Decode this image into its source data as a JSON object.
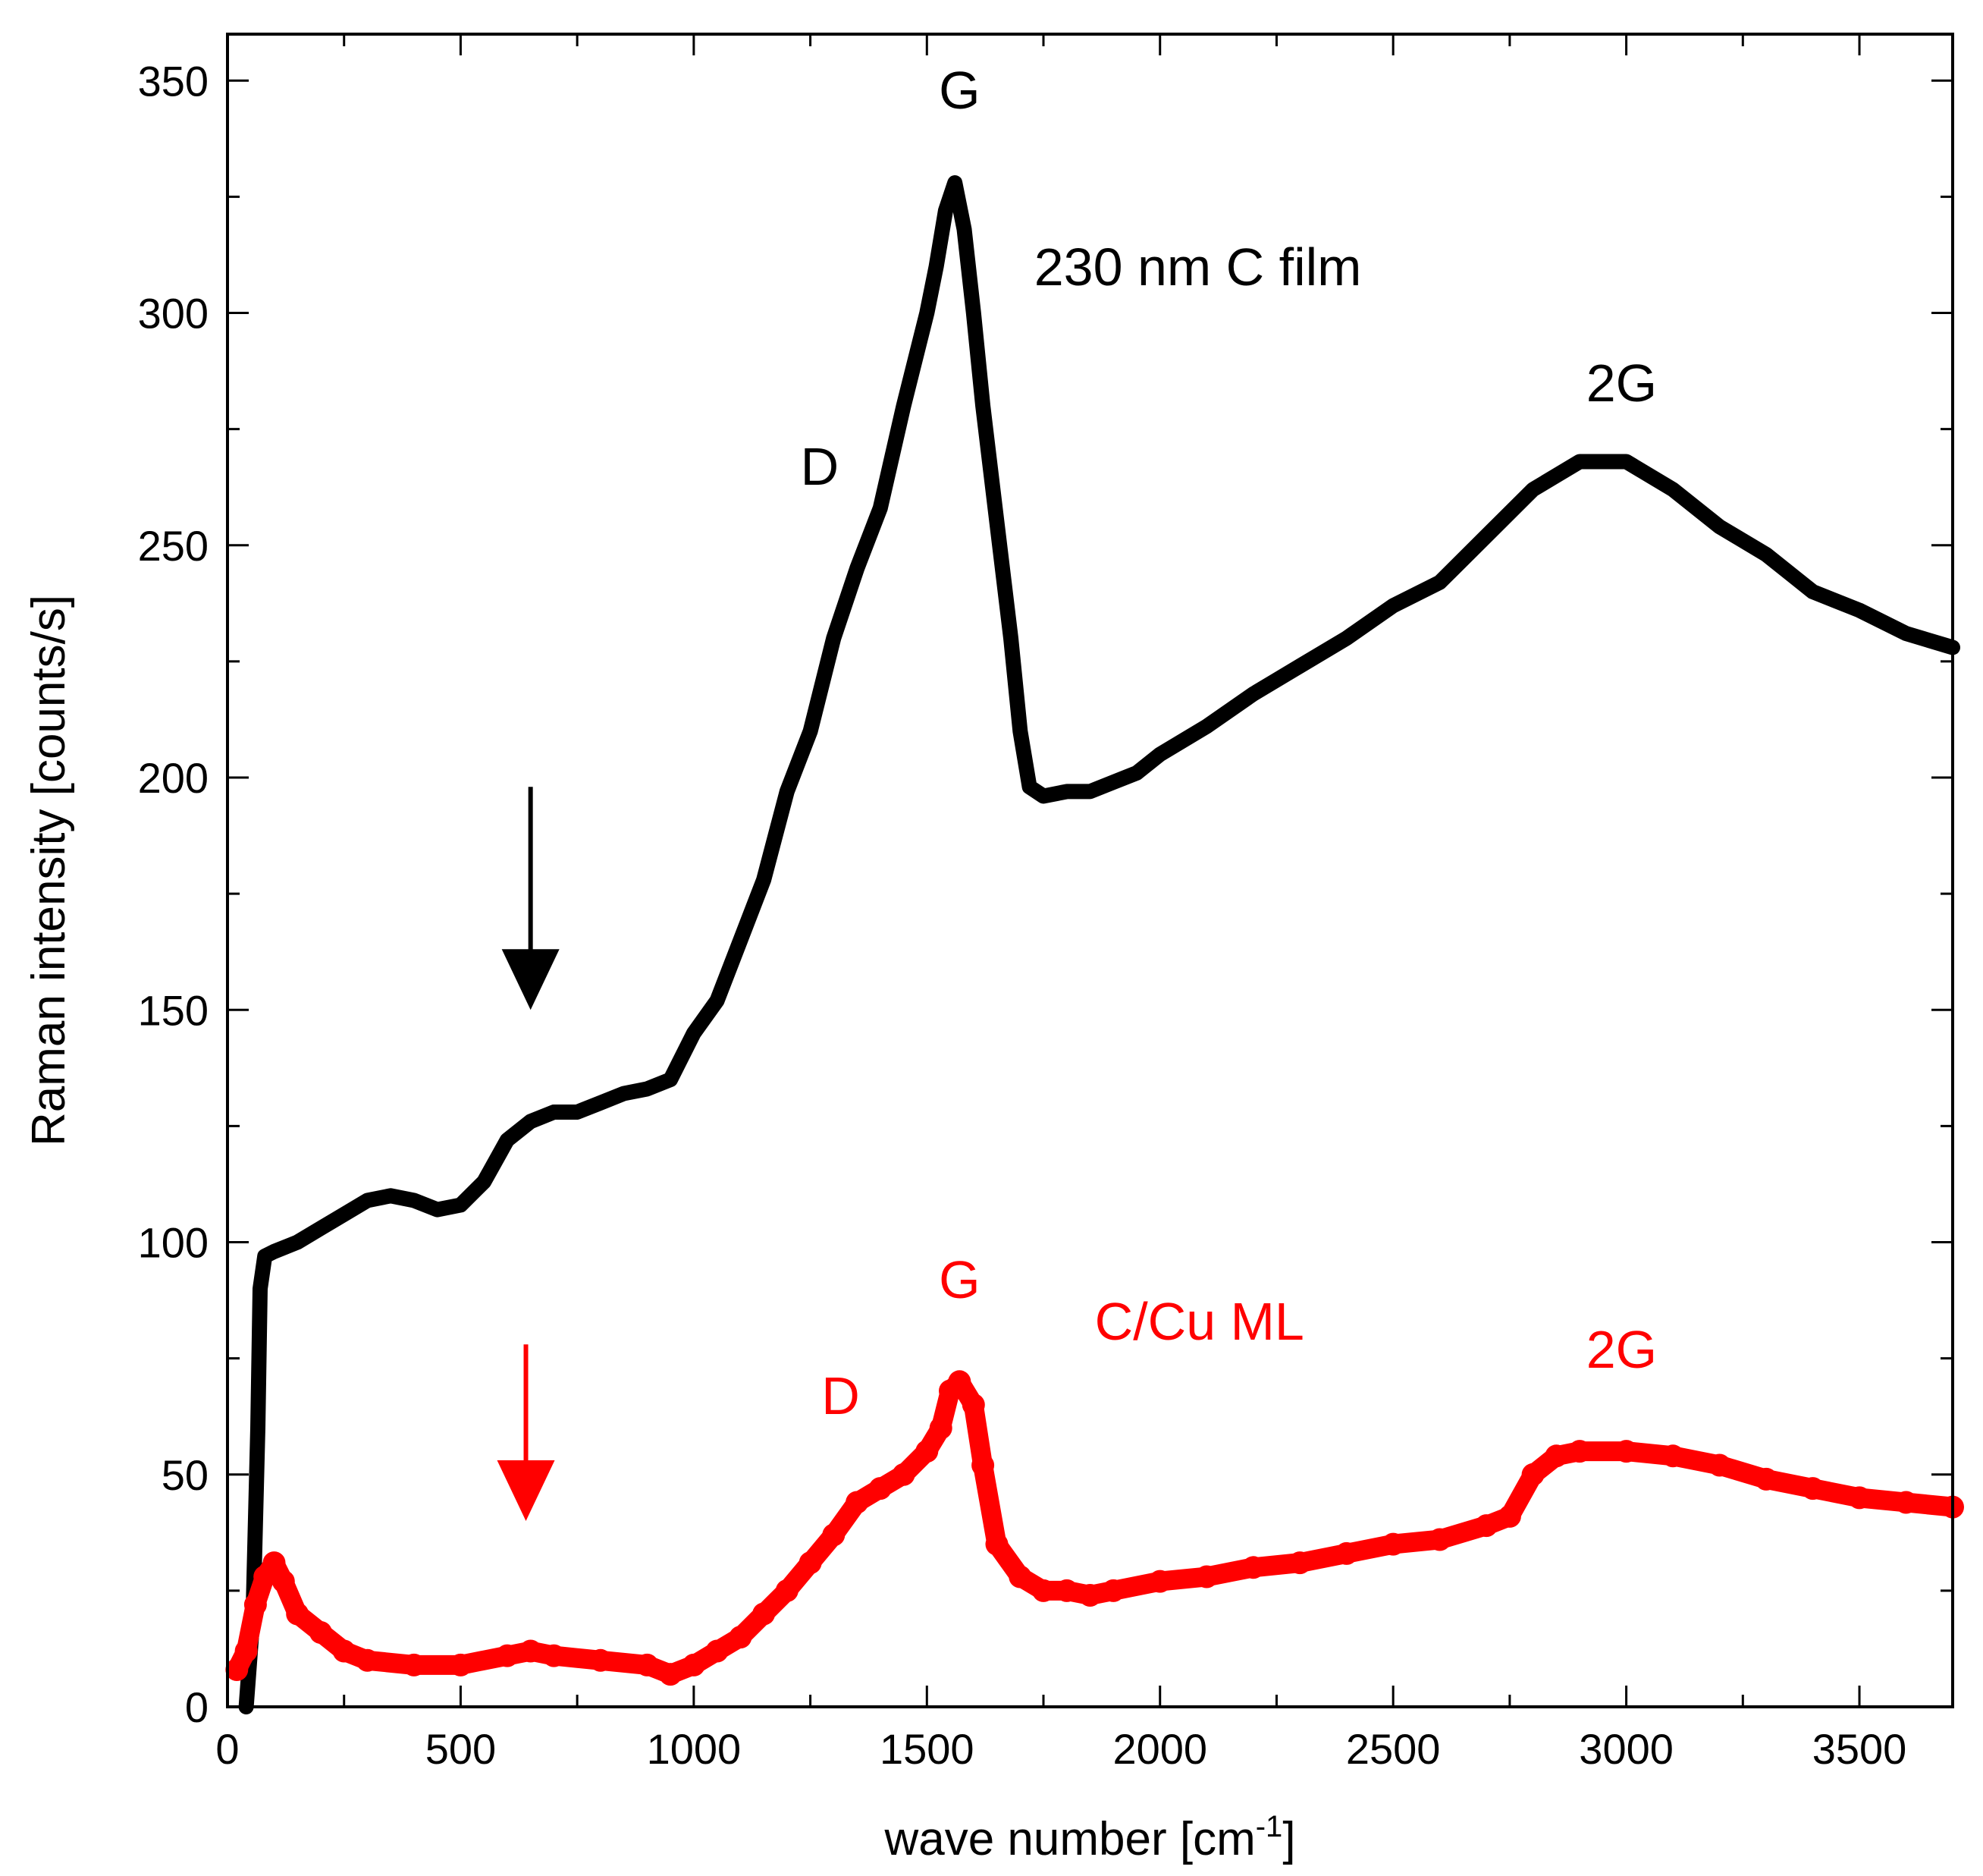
{
  "chart_data": {
    "type": "line",
    "title": "",
    "xlabel": "wave number [cm",
    "xlabel_sup": "-1",
    "xlabel_tail": "]",
    "ylabel": "Raman intensity [counts/s]",
    "xlim": [
      0,
      3700
    ],
    "ylim": [
      0,
      360
    ],
    "x_ticks": [
      "0",
      "500",
      "1000",
      "1500",
      "2000",
      "2500",
      "3000",
      "3500"
    ],
    "y_ticks": [
      "0",
      "50",
      "100",
      "150",
      "200",
      "250",
      "300",
      "350"
    ],
    "grid": false,
    "legend": "none",
    "series": [
      {
        "color": "#000000",
        "x": [
          40,
          55,
          65,
          70,
          80,
          100,
          150,
          200,
          250,
          300,
          350,
          400,
          450,
          500,
          550,
          600,
          650,
          700,
          750,
          800,
          850,
          900,
          950,
          1000,
          1050,
          1100,
          1150,
          1200,
          1250,
          1300,
          1350,
          1400,
          1450,
          1500,
          1520,
          1540,
          1560,
          1580,
          1600,
          1620,
          1650,
          1680,
          1700,
          1720,
          1750,
          1800,
          1850,
          1900,
          1950,
          2000,
          2100,
          2200,
          2300,
          2400,
          2500,
          2600,
          2700,
          2800,
          2900,
          3000,
          3100,
          3200,
          3300,
          3400,
          3500,
          3600,
          3700
        ],
        "values": [
          0,
          20,
          60,
          90,
          97,
          98,
          100,
          103,
          106,
          109,
          110,
          109,
          107,
          108,
          113,
          122,
          126,
          128,
          128,
          130,
          132,
          133,
          135,
          145,
          152,
          165,
          178,
          197,
          210,
          230,
          245,
          258,
          280,
          300,
          310,
          322,
          328,
          318,
          300,
          280,
          255,
          230,
          210,
          198,
          196,
          197,
          197,
          199,
          201,
          205,
          211,
          218,
          224,
          230,
          237,
          242,
          252,
          262,
          268,
          268,
          262,
          254,
          248,
          240,
          236,
          231,
          228
        ]
      },
      {
        "color": "#ff0000",
        "x": [
          20,
          40,
          60,
          80,
          100,
          120,
          150,
          200,
          250,
          300,
          400,
          500,
          600,
          650,
          700,
          800,
          900,
          950,
          1000,
          1050,
          1100,
          1150,
          1200,
          1250,
          1300,
          1350,
          1400,
          1450,
          1500,
          1530,
          1550,
          1570,
          1600,
          1620,
          1650,
          1700,
          1750,
          1800,
          1850,
          1900,
          2000,
          2100,
          2200,
          2300,
          2400,
          2500,
          2600,
          2700,
          2750,
          2800,
          2850,
          2900,
          3000,
          3100,
          3200,
          3300,
          3400,
          3500,
          3600,
          3700
        ],
        "values": [
          8,
          12,
          22,
          28,
          31,
          27,
          20,
          16,
          12,
          10,
          9,
          9,
          11,
          12,
          11,
          10,
          9,
          7,
          9,
          12,
          15,
          20,
          25,
          31,
          37,
          44,
          47,
          50,
          55,
          60,
          68,
          70,
          65,
          52,
          35,
          28,
          25,
          25,
          24,
          25,
          27,
          28,
          30,
          31,
          33,
          35,
          36,
          39,
          41,
          50,
          54,
          55,
          55,
          54,
          52,
          49,
          47,
          45,
          44,
          43
        ]
      }
    ],
    "annotations": [
      {
        "text": "G",
        "x": 1570,
        "y": 344,
        "color": "#000000"
      },
      {
        "text": "230 nm C film",
        "x": 1730,
        "y": 306,
        "color": "#000000"
      },
      {
        "text": "2G",
        "x": 2990,
        "y": 281,
        "color": "#000000"
      },
      {
        "text": "D",
        "x": 1270,
        "y": 263,
        "color": "#000000"
      },
      {
        "text": "G",
        "x": 1570,
        "y": 88,
        "color": "#ff0000"
      },
      {
        "text": "C/Cu ML",
        "x": 1860,
        "y": 79,
        "color": "#ff0000"
      },
      {
        "text": "2G",
        "x": 2990,
        "y": 73,
        "color": "#ff0000"
      },
      {
        "text": "D",
        "x": 1315,
        "y": 63,
        "color": "#ff0000"
      }
    ],
    "arrows": [
      {
        "x": 650,
        "y_from": 198,
        "y_to": 150,
        "color": "#000000"
      },
      {
        "x": 640,
        "y_from": 78,
        "y_to": 40,
        "color": "#ff0000"
      }
    ]
  }
}
